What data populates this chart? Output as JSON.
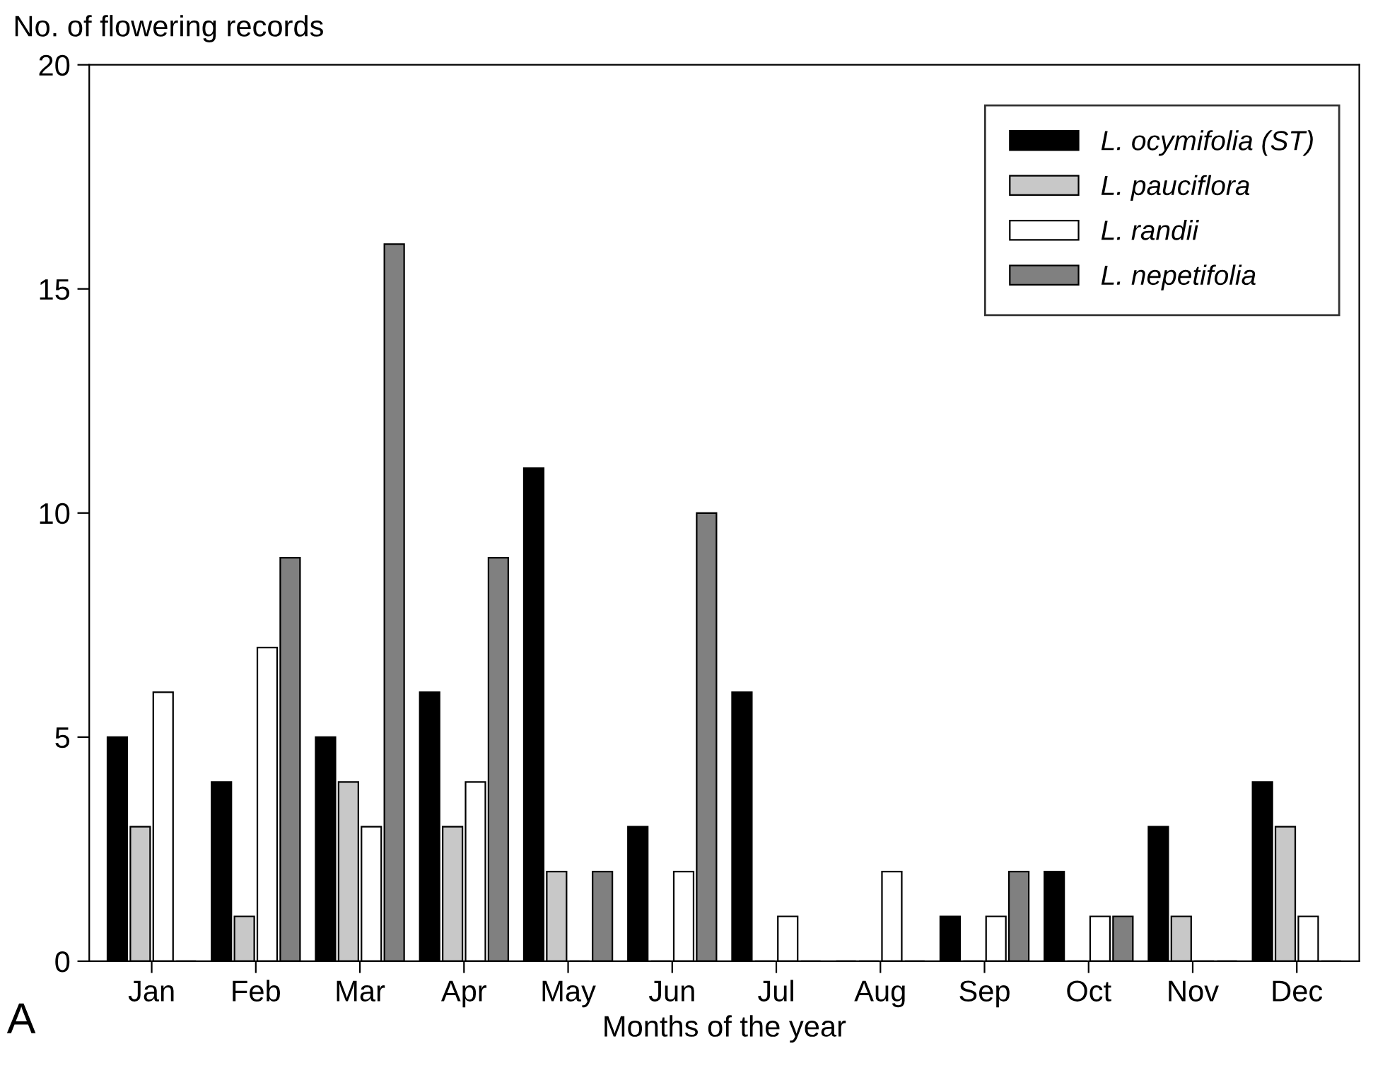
{
  "chart_data": {
    "type": "bar",
    "ylabel": "No. of flowering records",
    "xlabel": "Months of the year",
    "categories": [
      "Jan",
      "Feb",
      "Mar",
      "Apr",
      "May",
      "Jun",
      "Jul",
      "Aug",
      "Sep",
      "Oct",
      "Nov",
      "Dec"
    ],
    "series": [
      {
        "name": "L. ocymifolia (ST)",
        "color": "#000000",
        "values": [
          5,
          4,
          5,
          6,
          11,
          3,
          6,
          0,
          1,
          2,
          3,
          4
        ]
      },
      {
        "name": "L. pauciflora",
        "color": "#c8c8c8",
        "values": [
          3,
          1,
          4,
          3,
          2,
          0,
          0,
          0,
          0,
          0,
          1,
          3
        ]
      },
      {
        "name": "L. randii",
        "color": "#ffffff",
        "values": [
          6,
          7,
          3,
          4,
          0,
          2,
          1,
          2,
          1,
          1,
          0,
          1
        ]
      },
      {
        "name": "L. nepetifolia",
        "color": "#808080",
        "values": [
          0,
          9,
          16,
          9,
          2,
          10,
          0,
          0,
          2,
          1,
          0,
          0
        ]
      }
    ],
    "ylim": [
      0,
      20
    ],
    "yticks": [
      0,
      5,
      10,
      15,
      20
    ],
    "grid": false,
    "legend": "top right",
    "annotations": [
      "A"
    ]
  }
}
